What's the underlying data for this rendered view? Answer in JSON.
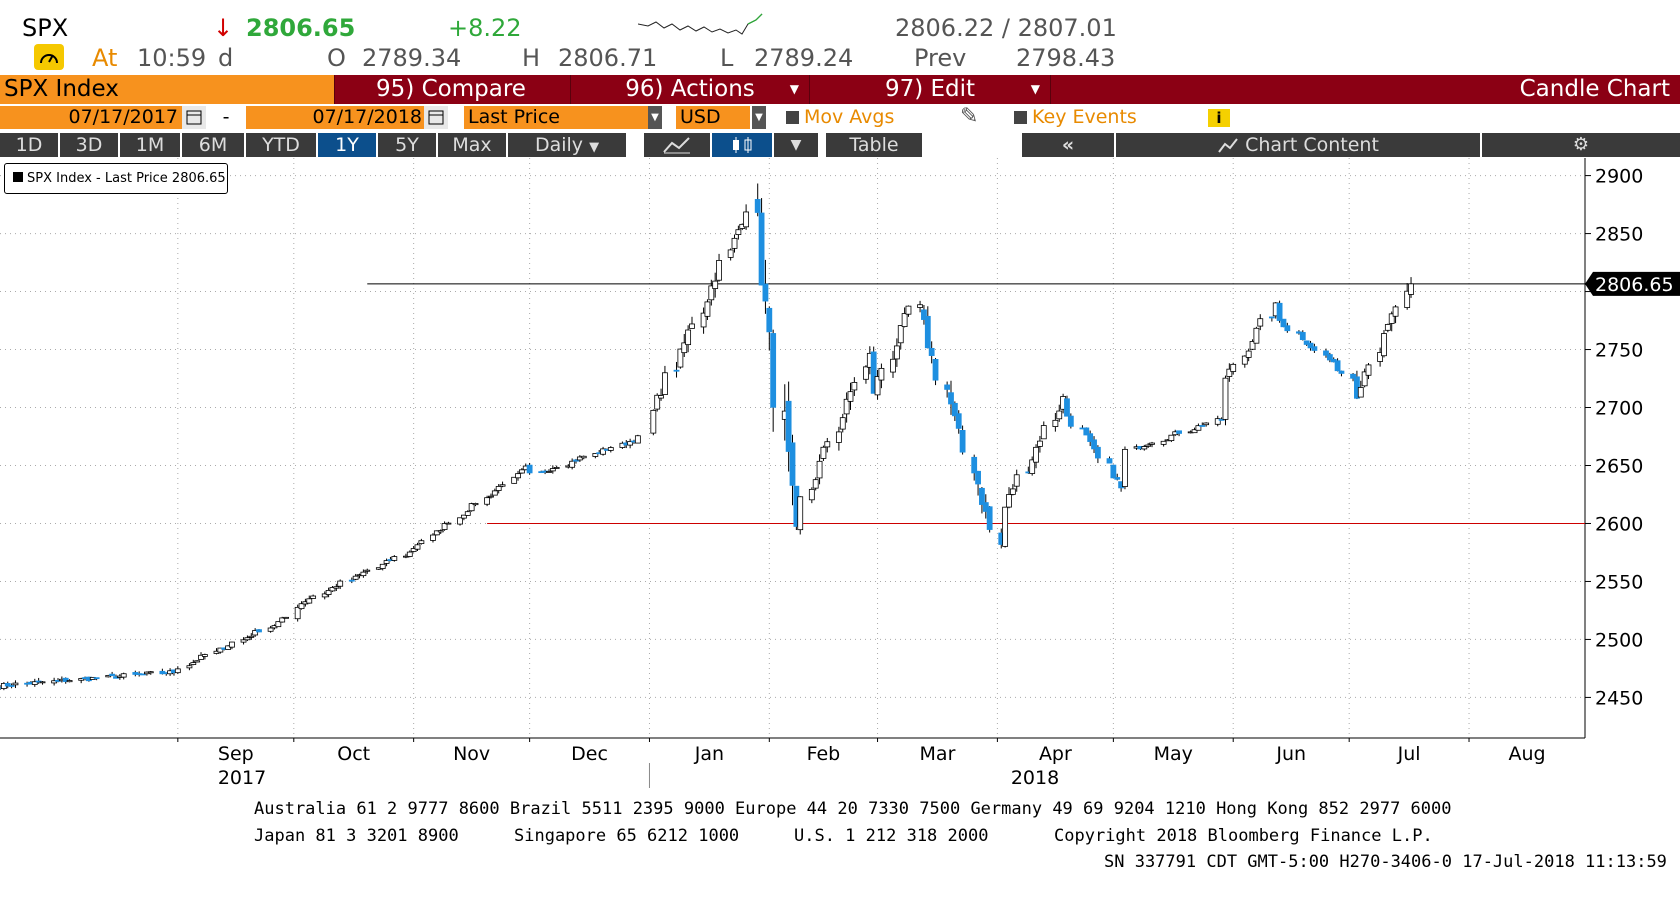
{
  "quote": {
    "ticker": "SPX",
    "arrow": "↓",
    "last": "2806.65",
    "change": "+8.22",
    "bid_ask": "2806.22 / 2807.01",
    "at_label": "At",
    "time": "10:59",
    "suffix": "d",
    "open_label": "O",
    "open": "2789.34",
    "high_label": "H",
    "high": "2806.71",
    "low_label": "L",
    "low": "2789.24",
    "prev_label": "Prev",
    "prev": "2798.43"
  },
  "menu": {
    "security": "SPX Index",
    "compare": "95) Compare",
    "actions": "96) Actions",
    "edit": "97) Edit",
    "chart_type": "Candle Chart"
  },
  "controls": {
    "start_date": "07/17/2017",
    "dash": "-",
    "end_date": "07/17/2018",
    "field": "Last Price",
    "currency": "USD",
    "mov_avgs": "Mov Avgs",
    "key_events": "Key Events"
  },
  "toolbar": {
    "periods": [
      "1D",
      "3D",
      "1M",
      "6M",
      "YTD",
      "1Y",
      "5Y",
      "Max"
    ],
    "selected_period": "1Y",
    "frequency": "Daily",
    "table": "Table",
    "chart_content": "Chart Content"
  },
  "colors": {
    "up_candle": "#ffffff",
    "down_candle": "#1e8fe0",
    "last_line": "#000000",
    "support_line": "#cc0000",
    "menu_bg": "#8b0014",
    "accent": "#f7921e"
  },
  "chart_data": {
    "type": "candlestick",
    "legend": "SPX Index - Last Price 2806.65",
    "legend_position": "top-left",
    "last_price_label": "2806.65",
    "last_price": 2806.65,
    "reference_line": 2600,
    "ylim": [
      2415,
      2910
    ],
    "y_ticks": [
      2450,
      2500,
      2550,
      2600,
      2650,
      2700,
      2750,
      2800,
      2850,
      2900
    ],
    "y_tick_labels": [
      "2450",
      "2500",
      "2550",
      "2600",
      "2650",
      "2700",
      "2750",
      "",
      "2850",
      "2900"
    ],
    "month_labels": [
      "Sep",
      "Oct",
      "Nov",
      "Dec",
      "Jan",
      "Feb",
      "Mar",
      "Apr",
      "May",
      "Jun",
      "Jul",
      "Aug"
    ],
    "year_labels": [
      "2017",
      "2018"
    ],
    "grid": true,
    "date_range": [
      "2017-07-17",
      "2018-07-17"
    ],
    "segments": [
      {
        "start": "2017-07-17",
        "end": "2017-08-31",
        "from": 2460,
        "to": 2472
      },
      {
        "start": "2017-09-01",
        "end": "2017-09-29",
        "from": 2476,
        "to": 2519
      },
      {
        "start": "2017-10-02",
        "end": "2017-10-31",
        "from": 2529,
        "to": 2575
      },
      {
        "start": "2017-11-01",
        "end": "2017-11-30",
        "from": 2579,
        "to": 2648
      },
      {
        "start": "2017-12-01",
        "end": "2017-12-29",
        "from": 2642,
        "to": 2674
      },
      {
        "start": "2018-01-02",
        "end": "2018-01-26",
        "from": 2696,
        "to": 2873
      },
      {
        "start": "2018-01-29",
        "end": "2018-02-08",
        "from": 2853,
        "to": 2581
      },
      {
        "start": "2018-02-09",
        "end": "2018-02-27",
        "from": 2620,
        "to": 2744
      },
      {
        "start": "2018-02-28",
        "end": "2018-03-09",
        "from": 2714,
        "to": 2786
      },
      {
        "start": "2018-03-12",
        "end": "2018-04-02",
        "from": 2783,
        "to": 2581
      },
      {
        "start": "2018-04-03",
        "end": "2018-04-18",
        "from": 2614,
        "to": 2708
      },
      {
        "start": "2018-04-19",
        "end": "2018-05-03",
        "from": 2693,
        "to": 2630
      },
      {
        "start": "2018-05-04",
        "end": "2018-05-29",
        "from": 2663,
        "to": 2690
      },
      {
        "start": "2018-05-30",
        "end": "2018-06-12",
        "from": 2724,
        "to": 2787
      },
      {
        "start": "2018-06-13",
        "end": "2018-07-02",
        "from": 2775,
        "to": 2726
      },
      {
        "start": "2018-07-03",
        "end": "2018-07-17",
        "from": 2713,
        "to": 2806
      }
    ]
  },
  "footer": {
    "line1": "Australia 61 2 9777 8600 Brazil 5511 2395 9000 Europe 44 20 7330 7500 Germany 49 69 9204 1210 Hong Kong 852 2977 6000",
    "line2a": "Japan 81 3 3201 8900",
    "line2b": "Singapore 65 6212 1000",
    "line2c": "U.S. 1 212 318 2000",
    "line2d": "Copyright 2018 Bloomberg Finance L.P.",
    "line3": "SN 337791 CDT  GMT-5:00 H270-3406-0 17-Jul-2018 11:13:59"
  }
}
